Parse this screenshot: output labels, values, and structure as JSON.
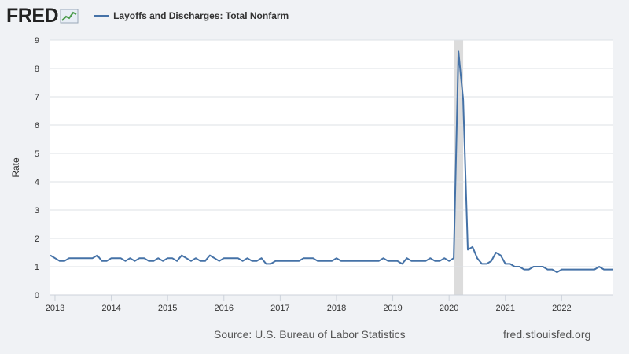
{
  "header": {
    "logo_text": "FRED",
    "legend_label": "Layoffs and Discharges: Total Nonfarm"
  },
  "footer": {
    "source": "Source: U.S. Bureau of Labor Statistics",
    "site": "fred.stlouisfed.org"
  },
  "colors": {
    "line": "#4572a7",
    "recession": "#dcdcdc",
    "grid": "#dde1e6",
    "plot_bg": "#ffffff"
  },
  "chart_data": {
    "type": "line",
    "title": "Layoffs and Discharges: Total Nonfarm",
    "xlabel": "",
    "ylabel": "Rate",
    "ylim": [
      0,
      9
    ],
    "yticks": [
      0,
      1,
      2,
      3,
      4,
      5,
      6,
      7,
      8,
      9
    ],
    "xtick_labels": [
      "2013",
      "2014",
      "2015",
      "2016",
      "2017",
      "2018",
      "2019",
      "2020",
      "2021",
      "2022"
    ],
    "start": "2012-12",
    "frequency": "monthly",
    "recession": {
      "start": "2020-02",
      "end": "2020-04"
    },
    "series": [
      {
        "name": "Layoffs and Discharges: Total Nonfarm",
        "values": [
          1.4,
          1.3,
          1.2,
          1.2,
          1.3,
          1.3,
          1.3,
          1.3,
          1.3,
          1.3,
          1.4,
          1.2,
          1.2,
          1.3,
          1.3,
          1.3,
          1.2,
          1.3,
          1.2,
          1.3,
          1.3,
          1.2,
          1.2,
          1.3,
          1.2,
          1.3,
          1.3,
          1.2,
          1.4,
          1.3,
          1.2,
          1.3,
          1.2,
          1.2,
          1.4,
          1.3,
          1.2,
          1.3,
          1.3,
          1.3,
          1.3,
          1.2,
          1.3,
          1.2,
          1.2,
          1.3,
          1.1,
          1.1,
          1.2,
          1.2,
          1.2,
          1.2,
          1.2,
          1.2,
          1.3,
          1.3,
          1.3,
          1.2,
          1.2,
          1.2,
          1.2,
          1.3,
          1.2,
          1.2,
          1.2,
          1.2,
          1.2,
          1.2,
          1.2,
          1.2,
          1.2,
          1.3,
          1.2,
          1.2,
          1.2,
          1.1,
          1.3,
          1.2,
          1.2,
          1.2,
          1.2,
          1.3,
          1.2,
          1.2,
          1.3,
          1.2,
          1.3,
          8.6,
          6.9,
          1.6,
          1.7,
          1.3,
          1.1,
          1.1,
          1.2,
          1.5,
          1.4,
          1.1,
          1.1,
          1.0,
          1.0,
          0.9,
          0.9,
          1.0,
          1.0,
          1.0,
          0.9,
          0.9,
          0.8,
          0.9,
          0.9,
          0.9,
          0.9,
          0.9,
          0.9,
          0.9,
          0.9,
          1.0,
          0.9,
          0.9,
          0.9
        ]
      }
    ]
  }
}
